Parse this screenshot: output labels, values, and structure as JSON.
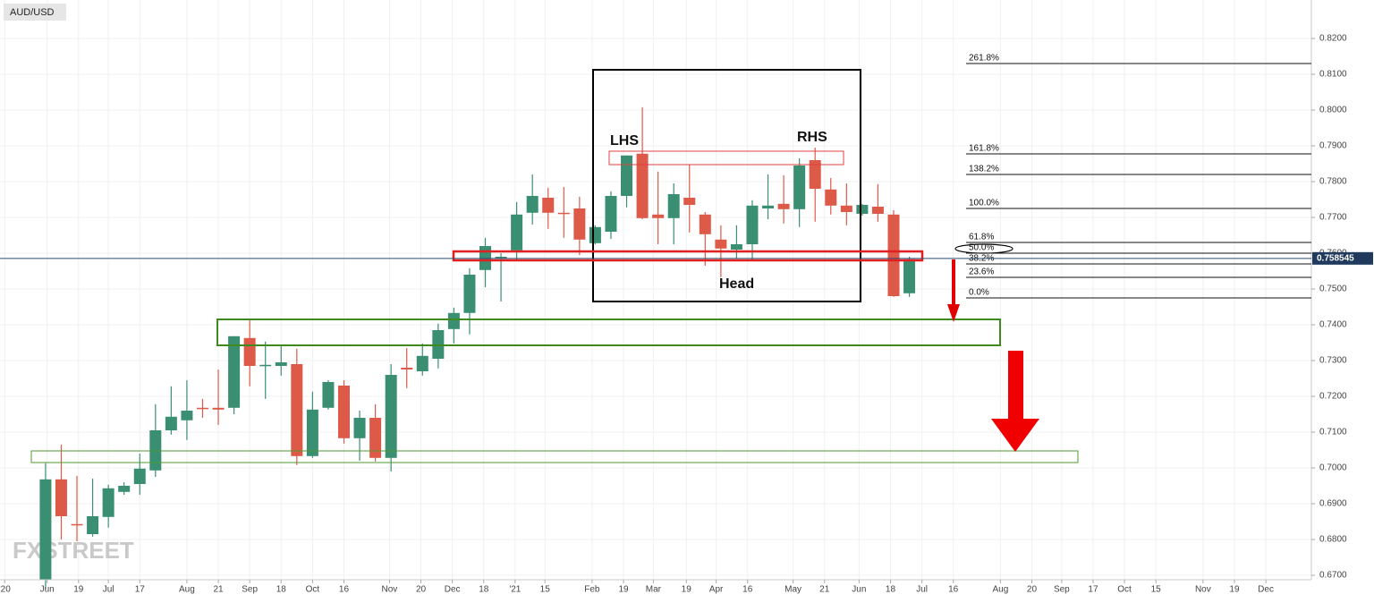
{
  "chart_data": {
    "type": "candlestick",
    "title": "AUD/USD",
    "watermark": "FXSTREET",
    "up_color": "#3a8f73",
    "down_color": "#dd5a48",
    "grid": true,
    "xlim": [
      -2.9,
      80.6
    ],
    "ylim": [
      0.66875,
      0.83075
    ],
    "xticks": [
      {
        "value": -2.6,
        "label": "'20"
      },
      {
        "value": 0.1,
        "label": "Jun"
      },
      {
        "value": 2.1,
        "label": "19"
      },
      {
        "value": 4.0,
        "label": "Jul"
      },
      {
        "value": 6.0,
        "label": "17"
      },
      {
        "value": 9.0,
        "label": "Aug"
      },
      {
        "value": 11.0,
        "label": "21"
      },
      {
        "value": 13.0,
        "label": "Sep"
      },
      {
        "value": 15.0,
        "label": "18"
      },
      {
        "value": 17.0,
        "label": "Oct"
      },
      {
        "value": 19.0,
        "label": "16"
      },
      {
        "value": 21.9,
        "label": "Nov"
      },
      {
        "value": 23.9,
        "label": "20"
      },
      {
        "value": 25.9,
        "label": "Dec"
      },
      {
        "value": 27.9,
        "label": "18"
      },
      {
        "value": 29.9,
        "label": "'21"
      },
      {
        "value": 31.8,
        "label": "15"
      },
      {
        "value": 34.8,
        "label": "Feb"
      },
      {
        "value": 36.8,
        "label": "19"
      },
      {
        "value": 38.7,
        "label": "Mar"
      },
      {
        "value": 40.8,
        "label": "19"
      },
      {
        "value": 42.7,
        "label": "Apr"
      },
      {
        "value": 44.7,
        "label": "16"
      },
      {
        "value": 47.6,
        "label": "May"
      },
      {
        "value": 49.6,
        "label": "21"
      },
      {
        "value": 51.8,
        "label": "Jun"
      },
      {
        "value": 53.8,
        "label": "18"
      },
      {
        "value": 55.8,
        "label": "Jul"
      },
      {
        "value": 57.8,
        "label": "16"
      },
      {
        "value": 60.8,
        "label": "Aug"
      },
      {
        "value": 62.8,
        "label": "20"
      },
      {
        "value": 64.7,
        "label": "Sep"
      },
      {
        "value": 66.7,
        "label": "17"
      },
      {
        "value": 68.7,
        "label": "Oct"
      },
      {
        "value": 70.7,
        "label": "15"
      },
      {
        "value": 73.7,
        "label": "Nov"
      },
      {
        "value": 75.7,
        "label": "19"
      },
      {
        "value": 77.7,
        "label": "Dec"
      }
    ],
    "yticks": [
      {
        "value": 0.67,
        "label": "0.6700"
      },
      {
        "value": 0.68,
        "label": "0.6800"
      },
      {
        "value": 0.69,
        "label": "0.6900"
      },
      {
        "value": 0.7,
        "label": "0.7000"
      },
      {
        "value": 0.71,
        "label": "0.7100"
      },
      {
        "value": 0.72,
        "label": "0.7200"
      },
      {
        "value": 0.73,
        "label": "0.7300"
      },
      {
        "value": 0.74,
        "label": "0.7400"
      },
      {
        "value": 0.75,
        "label": "0.7500"
      },
      {
        "value": 0.76,
        "label": "0.7600"
      },
      {
        "value": 0.77,
        "label": "0.7700"
      },
      {
        "value": 0.78,
        "label": "0.7800"
      },
      {
        "value": 0.79,
        "label": "0.7900"
      },
      {
        "value": 0.8,
        "label": "0.8000"
      },
      {
        "value": 0.81,
        "label": "0.8100"
      },
      {
        "value": 0.82,
        "label": "0.8200"
      }
    ],
    "current_price": 0.758545,
    "ohlc": [
      [
        0.6688,
        0.7013,
        0.666,
        0.6968
      ],
      [
        0.6968,
        0.7065,
        0.68,
        0.6865
      ],
      [
        0.6843,
        0.6978,
        0.6795,
        0.684
      ],
      [
        0.6815,
        0.697,
        0.6808,
        0.6865
      ],
      [
        0.6863,
        0.6953,
        0.6833,
        0.6943
      ],
      [
        0.6933,
        0.696,
        0.6925,
        0.695
      ],
      [
        0.6955,
        0.704,
        0.6925,
        0.6998
      ],
      [
        0.6993,
        0.7178,
        0.6975,
        0.7105
      ],
      [
        0.7105,
        0.7228,
        0.7093,
        0.7143
      ],
      [
        0.7133,
        0.7245,
        0.7078,
        0.716
      ],
      [
        0.7168,
        0.7193,
        0.714,
        0.7165
      ],
      [
        0.7168,
        0.7275,
        0.712,
        0.7163
      ],
      [
        0.7168,
        0.7368,
        0.715,
        0.7368
      ],
      [
        0.7363,
        0.7415,
        0.7228,
        0.7285
      ],
      [
        0.7288,
        0.7353,
        0.7193,
        0.7288
      ],
      [
        0.7285,
        0.734,
        0.7258,
        0.7295
      ],
      [
        0.729,
        0.7333,
        0.7008,
        0.7033
      ],
      [
        0.7033,
        0.7213,
        0.7028,
        0.7163
      ],
      [
        0.7168,
        0.7245,
        0.7163,
        0.724
      ],
      [
        0.723,
        0.7245,
        0.7068,
        0.7083
      ],
      [
        0.7083,
        0.716,
        0.702,
        0.714
      ],
      [
        0.714,
        0.7178,
        0.7018,
        0.7028
      ],
      [
        0.7028,
        0.729,
        0.699,
        0.726
      ],
      [
        0.728,
        0.7335,
        0.7223,
        0.7275
      ],
      [
        0.727,
        0.7348,
        0.7258,
        0.7313
      ],
      [
        0.7305,
        0.7403,
        0.7278,
        0.7385
      ],
      [
        0.7388,
        0.7448,
        0.7348,
        0.7433
      ],
      [
        0.7433,
        0.7558,
        0.7373,
        0.754
      ],
      [
        0.7553,
        0.7643,
        0.7505,
        0.762
      ],
      [
        0.759,
        0.76,
        0.7465,
        0.759
      ],
      [
        0.7608,
        0.7743,
        0.7578,
        0.7708
      ],
      [
        0.7713,
        0.782,
        0.768,
        0.776
      ],
      [
        0.7755,
        0.7783,
        0.7668,
        0.7713
      ],
      [
        0.7713,
        0.7785,
        0.7643,
        0.771
      ],
      [
        0.7725,
        0.7758,
        0.7595,
        0.7638
      ],
      [
        0.7628,
        0.7678,
        0.7625,
        0.7673
      ],
      [
        0.766,
        0.7773,
        0.764,
        0.776
      ],
      [
        0.776,
        0.7873,
        0.7728,
        0.7873
      ],
      [
        0.7878,
        0.8008,
        0.7695,
        0.7698
      ],
      [
        0.7708,
        0.7828,
        0.7625,
        0.7698
      ],
      [
        0.7698,
        0.7795,
        0.7625,
        0.7765
      ],
      [
        0.7755,
        0.7848,
        0.7658,
        0.7735
      ],
      [
        0.7708,
        0.7715,
        0.7565,
        0.7653
      ],
      [
        0.7638,
        0.7678,
        0.7533,
        0.7613
      ],
      [
        0.761,
        0.7678,
        0.7585,
        0.7625
      ],
      [
        0.7625,
        0.7748,
        0.758,
        0.7733
      ],
      [
        0.7725,
        0.782,
        0.7695,
        0.7733
      ],
      [
        0.7738,
        0.7818,
        0.7683,
        0.7723
      ],
      [
        0.7723,
        0.7865,
        0.7673,
        0.7845
      ],
      [
        0.786,
        0.7895,
        0.7688,
        0.778
      ],
      [
        0.7778,
        0.781,
        0.7708,
        0.7733
      ],
      [
        0.7733,
        0.7795,
        0.7678,
        0.7715
      ],
      [
        0.771,
        0.7738,
        0.7705,
        0.7735
      ],
      [
        0.773,
        0.7793,
        0.7688,
        0.771
      ],
      [
        0.7708,
        0.772,
        0.7478,
        0.748
      ],
      [
        0.7488,
        0.759,
        0.7478,
        0.7583
      ]
    ],
    "fib_levels": [
      {
        "label": "261.8%",
        "value": 0.813
      },
      {
        "label": "161.8%",
        "value": 0.78775
      },
      {
        "label": "138.2%",
        "value": 0.782
      },
      {
        "label": "100.0%",
        "value": 0.7725
      },
      {
        "label": "61.8%",
        "value": 0.763
      },
      {
        "label": "50.0%",
        "value": 0.76
      },
      {
        "label": "38.2%",
        "value": 0.757
      },
      {
        "label": "23.6%",
        "value": 0.75325
      },
      {
        "label": "0.0%",
        "value": 0.7475
      }
    ],
    "annotations": [
      "LHS",
      "RHS",
      "Head"
    ]
  }
}
